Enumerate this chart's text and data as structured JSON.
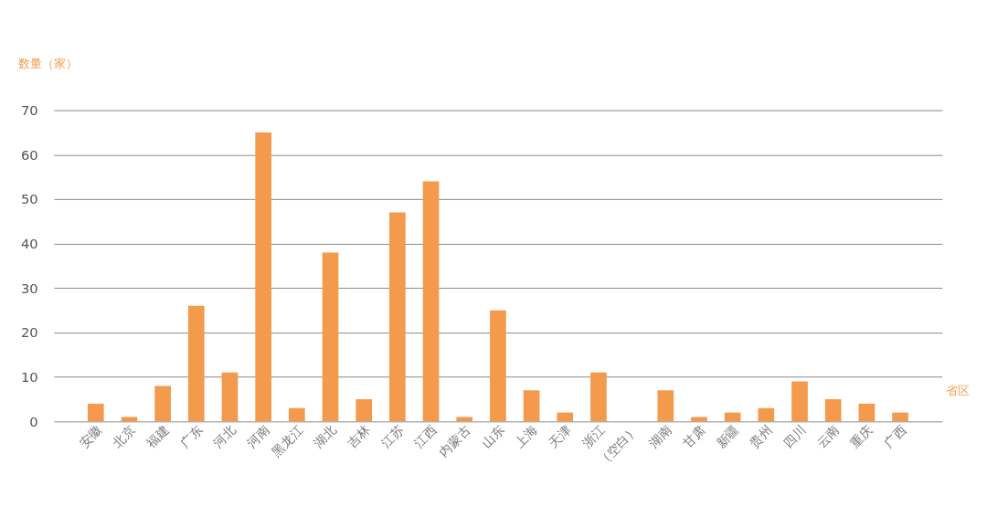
{
  "chart_data": {
    "type": "bar",
    "ylabel": "数量（家）",
    "xlabel": "省区",
    "categories": [
      "安徽",
      "北京",
      "福建",
      "广东",
      "河北",
      "河南",
      "黑龙江",
      "湖北",
      "吉林",
      "江苏",
      "江西",
      "内蒙古",
      "山东",
      "上海",
      "天津",
      "浙江",
      "（空白）",
      "湖南",
      "甘肃",
      "新疆",
      "贵州",
      "四川",
      "云南",
      "重庆",
      "广西"
    ],
    "values": [
      4,
      1,
      8,
      26,
      11,
      65,
      3,
      38,
      5,
      47,
      54,
      1,
      25,
      7,
      2,
      11,
      0,
      7,
      1,
      2,
      3,
      9,
      5,
      4,
      2
    ],
    "color": "#f39a4c",
    "ylim": [
      0,
      70
    ],
    "yticks": [
      0,
      10,
      20,
      30,
      40,
      50,
      60,
      70
    ],
    "grid": "y"
  }
}
